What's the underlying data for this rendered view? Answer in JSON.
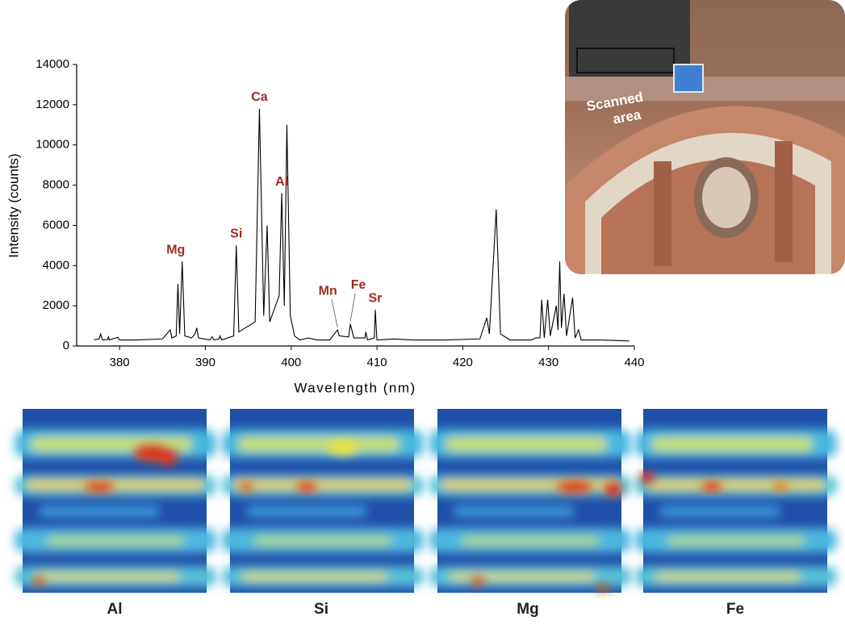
{
  "chart_data": {
    "type": "line",
    "xlabel": "Wavelength (nm)",
    "ylabel": "Intensity (counts)",
    "x": [
      377.0,
      377.6,
      377.8,
      378.0,
      378.6,
      378.7,
      378.8,
      379.8,
      380.0,
      382.0,
      385.0,
      385.5,
      385.9,
      386.1,
      386.6,
      386.8,
      387.0,
      387.3,
      387.6,
      388.4,
      388.8,
      389.0,
      389.2,
      390.5,
      390.8,
      391.0,
      391.6,
      391.7,
      391.9,
      393.3,
      393.6,
      393.9,
      395.8,
      396.3,
      396.8,
      397.2,
      397.5,
      398.6,
      398.9,
      399.2,
      399.5,
      399.9,
      400.4,
      401.0,
      402.0,
      403.0,
      404.5,
      405.4,
      405.6,
      406.7,
      406.9,
      407.3,
      408.6,
      408.7,
      408.9,
      409.7,
      409.8,
      410.0,
      412.0,
      414.0,
      418.0,
      422.0,
      422.8,
      423.1,
      423.9,
      424.4,
      425.5,
      428.0,
      428.5,
      429.0,
      429.2,
      429.5,
      429.9,
      430.2,
      430.9,
      431.1,
      431.3,
      431.5,
      431.8,
      432.1,
      432.8,
      433.1,
      433.5,
      433.8,
      436.0,
      439.4
    ],
    "values": [
      300,
      350,
      600,
      300,
      320,
      450,
      300,
      430,
      300,
      300,
      350,
      600,
      800,
      400,
      500,
      3100,
      600,
      4200,
      500,
      400,
      600,
      900,
      400,
      300,
      450,
      300,
      350,
      500,
      300,
      500,
      5000,
      700,
      1200,
      11800,
      1500,
      6000,
      1200,
      2500,
      7600,
      2000,
      11000,
      1500,
      500,
      300,
      400,
      300,
      300,
      800,
      500,
      450,
      1100,
      400,
      400,
      700,
      300,
      400,
      1800,
      300,
      350,
      300,
      300,
      350,
      1400,
      600,
      6800,
      600,
      300,
      300,
      400,
      400,
      2300,
      400,
      2300,
      500,
      2000,
      800,
      4200,
      900,
      2600,
      500,
      2400,
      400,
      800,
      300,
      300,
      250
    ],
    "color": "#000000",
    "xlim": [
      375,
      440
    ],
    "xticks": [
      380,
      390,
      400,
      410,
      420,
      430,
      440
    ],
    "ylim": [
      0,
      14000
    ],
    "yticks": [
      0,
      2000,
      4000,
      6000,
      8000,
      10000,
      12000,
      14000
    ],
    "annotation_color": "#9b2d20",
    "annotations": [
      {
        "text": "Mg",
        "x": 387.3,
        "y": 4200
      },
      {
        "text": "Si",
        "x": 393.6,
        "y": 5000
      },
      {
        "text": "Ca",
        "x": 396.3,
        "y": 11800
      },
      {
        "text": "Al",
        "x": 398.9,
        "y": 7600
      },
      {
        "text": "Mn",
        "x": 405.4,
        "y": 800
      },
      {
        "text": "Fe",
        "x": 406.9,
        "y": 1100
      },
      {
        "text": "Sr",
        "x": 409.8,
        "y": 1800
      }
    ]
  },
  "photo": {
    "label_lines": [
      "Scanned",
      "area"
    ]
  },
  "maps": [
    {
      "label": "Al"
    },
    {
      "label": "Si"
    },
    {
      "label": "Mg"
    },
    {
      "label": "Fe"
    }
  ]
}
